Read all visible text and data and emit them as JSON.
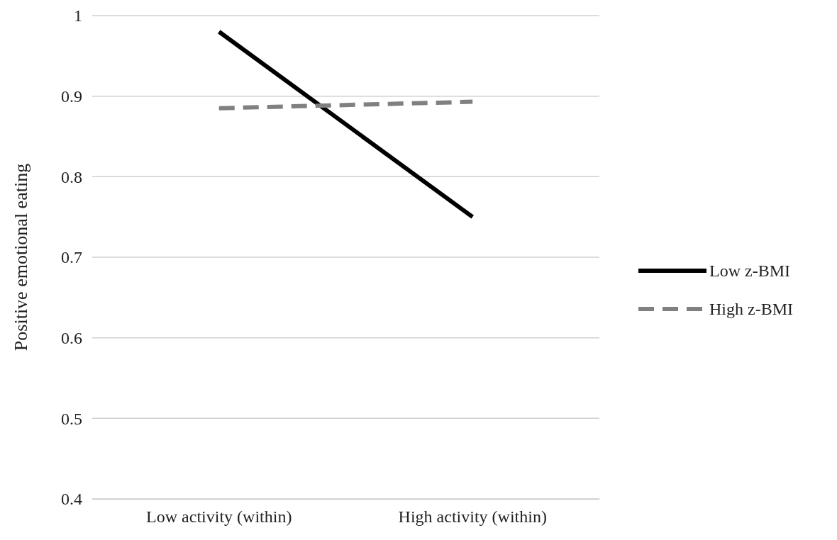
{
  "chart_data": {
    "type": "line",
    "ylabel": "Positive emotional eating",
    "categories": [
      "Low activity (within)",
      "High activity (within)"
    ],
    "series": [
      {
        "name": "Low z-BMI",
        "color": "#000000",
        "values": [
          0.98,
          0.75
        ],
        "line_style": "solid"
      },
      {
        "name": "High z-BMI",
        "color": "#808080",
        "values": [
          0.885,
          0.893
        ],
        "line_style": "dashed"
      }
    ],
    "ylim": [
      0.4,
      1
    ],
    "yticks": [
      0.4,
      0.5,
      0.6,
      0.7,
      0.8,
      0.9,
      1
    ],
    "grid": "y",
    "legend": "right",
    "marker": "none"
  }
}
